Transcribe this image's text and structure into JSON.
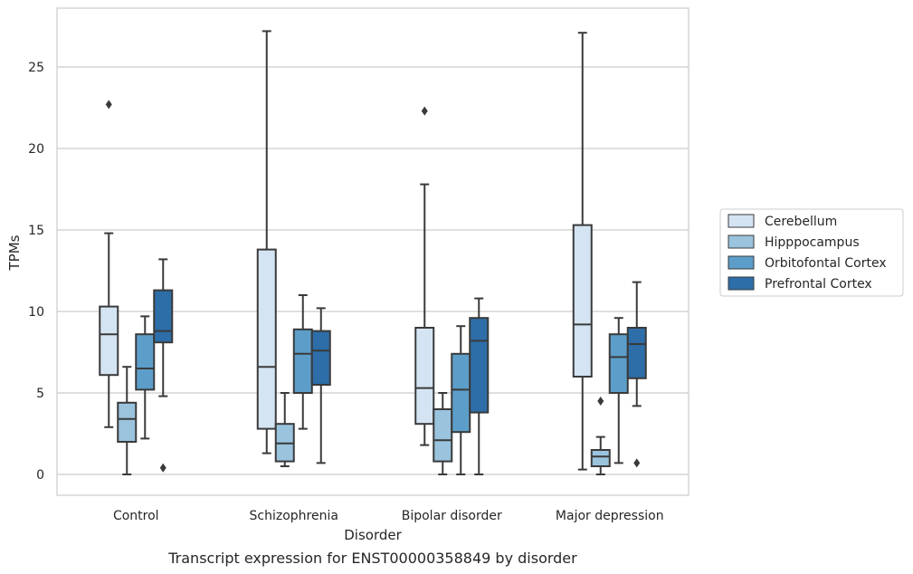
{
  "chart_data": {
    "type": "box",
    "title": "",
    "caption": "Transcript expression for ENST00000358849 by disorder",
    "xlabel": "Disorder",
    "ylabel": "TPMs",
    "ylim": [
      -1.3,
      28.7
    ],
    "yticks": [
      0,
      5,
      10,
      15,
      20,
      25
    ],
    "grid": "horizontal",
    "legend_position": "right",
    "categories": [
      "Control",
      "Schizophrenia",
      "Bipolar disorder",
      "Major depression"
    ],
    "series": [
      {
        "name": "Cerebellum",
        "color": "#d4e4f3",
        "boxes": [
          {
            "whisker_low": 2.9,
            "q1": 6.1,
            "median": 8.6,
            "q3": 10.3,
            "whisker_high": 14.8,
            "outliers": [
              22.7
            ]
          },
          {
            "whisker_low": 1.3,
            "q1": 2.8,
            "median": 6.6,
            "q3": 13.8,
            "whisker_high": 27.2,
            "outliers": []
          },
          {
            "whisker_low": 1.8,
            "q1": 3.1,
            "median": 5.3,
            "q3": 9.0,
            "whisker_high": 17.8,
            "outliers": [
              22.3
            ]
          },
          {
            "whisker_low": 0.3,
            "q1": 6.0,
            "median": 9.2,
            "q3": 15.3,
            "whisker_high": 27.1,
            "outliers": []
          }
        ]
      },
      {
        "name": "Hipppocampus",
        "color": "#9ac3dd",
        "boxes": [
          {
            "whisker_low": 0.0,
            "q1": 2.0,
            "median": 3.4,
            "q3": 4.4,
            "whisker_high": 6.6,
            "outliers": []
          },
          {
            "whisker_low": 0.5,
            "q1": 0.8,
            "median": 1.9,
            "q3": 3.1,
            "whisker_high": 5.0,
            "outliers": []
          },
          {
            "whisker_low": 0.0,
            "q1": 0.8,
            "median": 2.1,
            "q3": 4.0,
            "whisker_high": 5.0,
            "outliers": []
          },
          {
            "whisker_low": 0.0,
            "q1": 0.5,
            "median": 1.1,
            "q3": 1.5,
            "whisker_high": 2.3,
            "outliers": [
              4.5
            ]
          }
        ]
      },
      {
        "name": "Orbitofontal Cortex",
        "color": "#5c9ec9",
        "boxes": [
          {
            "whisker_low": 2.2,
            "q1": 5.2,
            "median": 6.5,
            "q3": 8.6,
            "whisker_high": 9.7,
            "outliers": []
          },
          {
            "whisker_low": 2.8,
            "q1": 5.0,
            "median": 7.4,
            "q3": 8.9,
            "whisker_high": 11.0,
            "outliers": []
          },
          {
            "whisker_low": 0.0,
            "q1": 2.6,
            "median": 5.2,
            "q3": 7.4,
            "whisker_high": 9.1,
            "outliers": []
          },
          {
            "whisker_low": 0.7,
            "q1": 5.0,
            "median": 7.2,
            "q3": 8.6,
            "whisker_high": 9.6,
            "outliers": []
          }
        ]
      },
      {
        "name": "Prefrontal Cortex",
        "color": "#2d6ea8",
        "boxes": [
          {
            "whisker_low": 4.8,
            "q1": 8.1,
            "median": 8.8,
            "q3": 11.3,
            "whisker_high": 13.2,
            "outliers": [
              0.4
            ]
          },
          {
            "whisker_low": 0.7,
            "q1": 5.5,
            "median": 7.6,
            "q3": 8.8,
            "whisker_high": 10.2,
            "outliers": []
          },
          {
            "whisker_low": 0.0,
            "q1": 3.8,
            "median": 8.2,
            "q3": 9.6,
            "whisker_high": 10.8,
            "outliers": []
          },
          {
            "whisker_low": 4.2,
            "q1": 5.9,
            "median": 8.0,
            "q3": 9.0,
            "whisker_high": 11.8,
            "outliers": [
              0.7
            ]
          }
        ]
      }
    ]
  }
}
